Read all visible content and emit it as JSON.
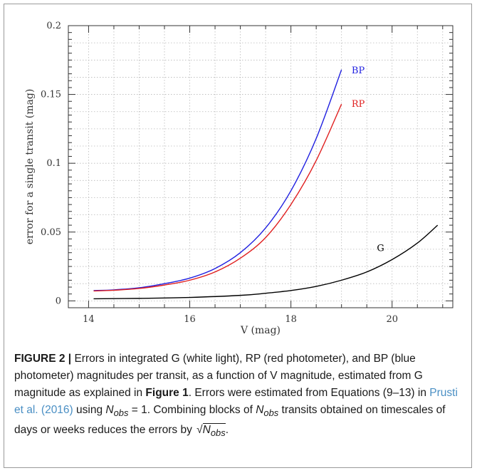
{
  "chart_data": {
    "type": "line",
    "xlabel": "V (mag)",
    "ylabel": "error for a single transit (mag)",
    "xlim": [
      13.6,
      21.2
    ],
    "ylim": [
      -0.005,
      0.2
    ],
    "xticks": [
      14,
      16,
      18,
      20
    ],
    "xtick_labels": [
      "14",
      "16",
      "18",
      "20"
    ],
    "yticks": [
      0,
      0.05,
      0.1,
      0.15,
      0.2
    ],
    "ytick_labels": [
      "0",
      "0.05",
      "0.1",
      "0.15",
      "0.2"
    ],
    "grid": true,
    "series": [
      {
        "name": "BP",
        "color": "#1f1fe0",
        "x": [
          14.1,
          14.5,
          15.0,
          15.5,
          16.0,
          16.5,
          17.0,
          17.5,
          18.0,
          18.5,
          19.0
        ],
        "y": [
          0.0075,
          0.008,
          0.0095,
          0.0125,
          0.0165,
          0.0235,
          0.035,
          0.053,
          0.08,
          0.118,
          0.168
        ]
      },
      {
        "name": "RP",
        "color": "#e01f1f",
        "x": [
          14.1,
          14.5,
          15.0,
          15.5,
          16.0,
          16.5,
          17.0,
          17.5,
          18.0,
          18.5,
          19.0
        ],
        "y": [
          0.0072,
          0.0077,
          0.009,
          0.0115,
          0.015,
          0.021,
          0.031,
          0.046,
          0.07,
          0.102,
          0.143
        ]
      },
      {
        "name": "G",
        "color": "#000000",
        "x": [
          14.1,
          15.0,
          16.0,
          17.0,
          17.5,
          18.0,
          18.5,
          19.0,
          19.5,
          20.0,
          20.5,
          20.9
        ],
        "y": [
          0.0015,
          0.0018,
          0.0025,
          0.004,
          0.0055,
          0.0075,
          0.0105,
          0.015,
          0.021,
          0.03,
          0.042,
          0.055
        ]
      }
    ]
  },
  "caption": {
    "label": "FIGURE 2 |",
    "text1": "Errors in integrated G (white light), RP (red photometer), and BP (blue photometer) magnitudes per transit, as a function of V magnitude, estimated from G magnitude as explained in",
    "figref": "Figure 1",
    "text2": ". Errors were estimated from Equations (9–13) in",
    "citation": "Prusti et al. (2016)",
    "text3": "using",
    "nobs": "N",
    "nobs_sub": "obs",
    "eq": "= 1. Combining blocks of",
    "text4": "transits obtained on timescales of days or weeks reduces the errors by",
    "sqrt_sign": "√",
    "end": "."
  }
}
